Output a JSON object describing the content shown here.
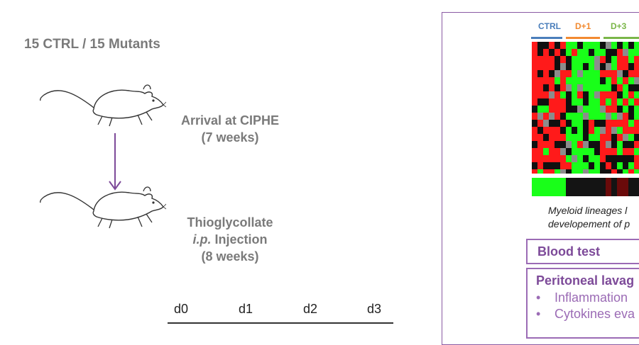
{
  "header": "15 CTRL / 15 Mutants",
  "arrival": {
    "line1": "Arrival at CIPHE",
    "line2": "(7 weeks)"
  },
  "injection": {
    "line1": "Thioglycollate",
    "line2_italic": "i.p.",
    "line2_rest": " Injection",
    "line3": "(8 weeks)"
  },
  "timeline": [
    "d0",
    "d1",
    "d2",
    "d3"
  ],
  "panel": {
    "groups": [
      {
        "label": "CTRL",
        "color": "#4a7ebb"
      },
      {
        "label": "D+1",
        "color": "#f28a30"
      },
      {
        "label": "D+3",
        "color": "#7ab648"
      }
    ],
    "caption_line1": "Myeloid lineages l",
    "caption_line2": "developement of p",
    "blood_test": "Blood test",
    "lavage_title": "Peritoneal lavag",
    "lavage_items": [
      "Inflammation",
      "Cytokines eva"
    ]
  },
  "colors": {
    "accent_purple": "#9b6bb5",
    "heatmap_red": "#ff1a1a",
    "heatmap_green": "#19ff19"
  }
}
